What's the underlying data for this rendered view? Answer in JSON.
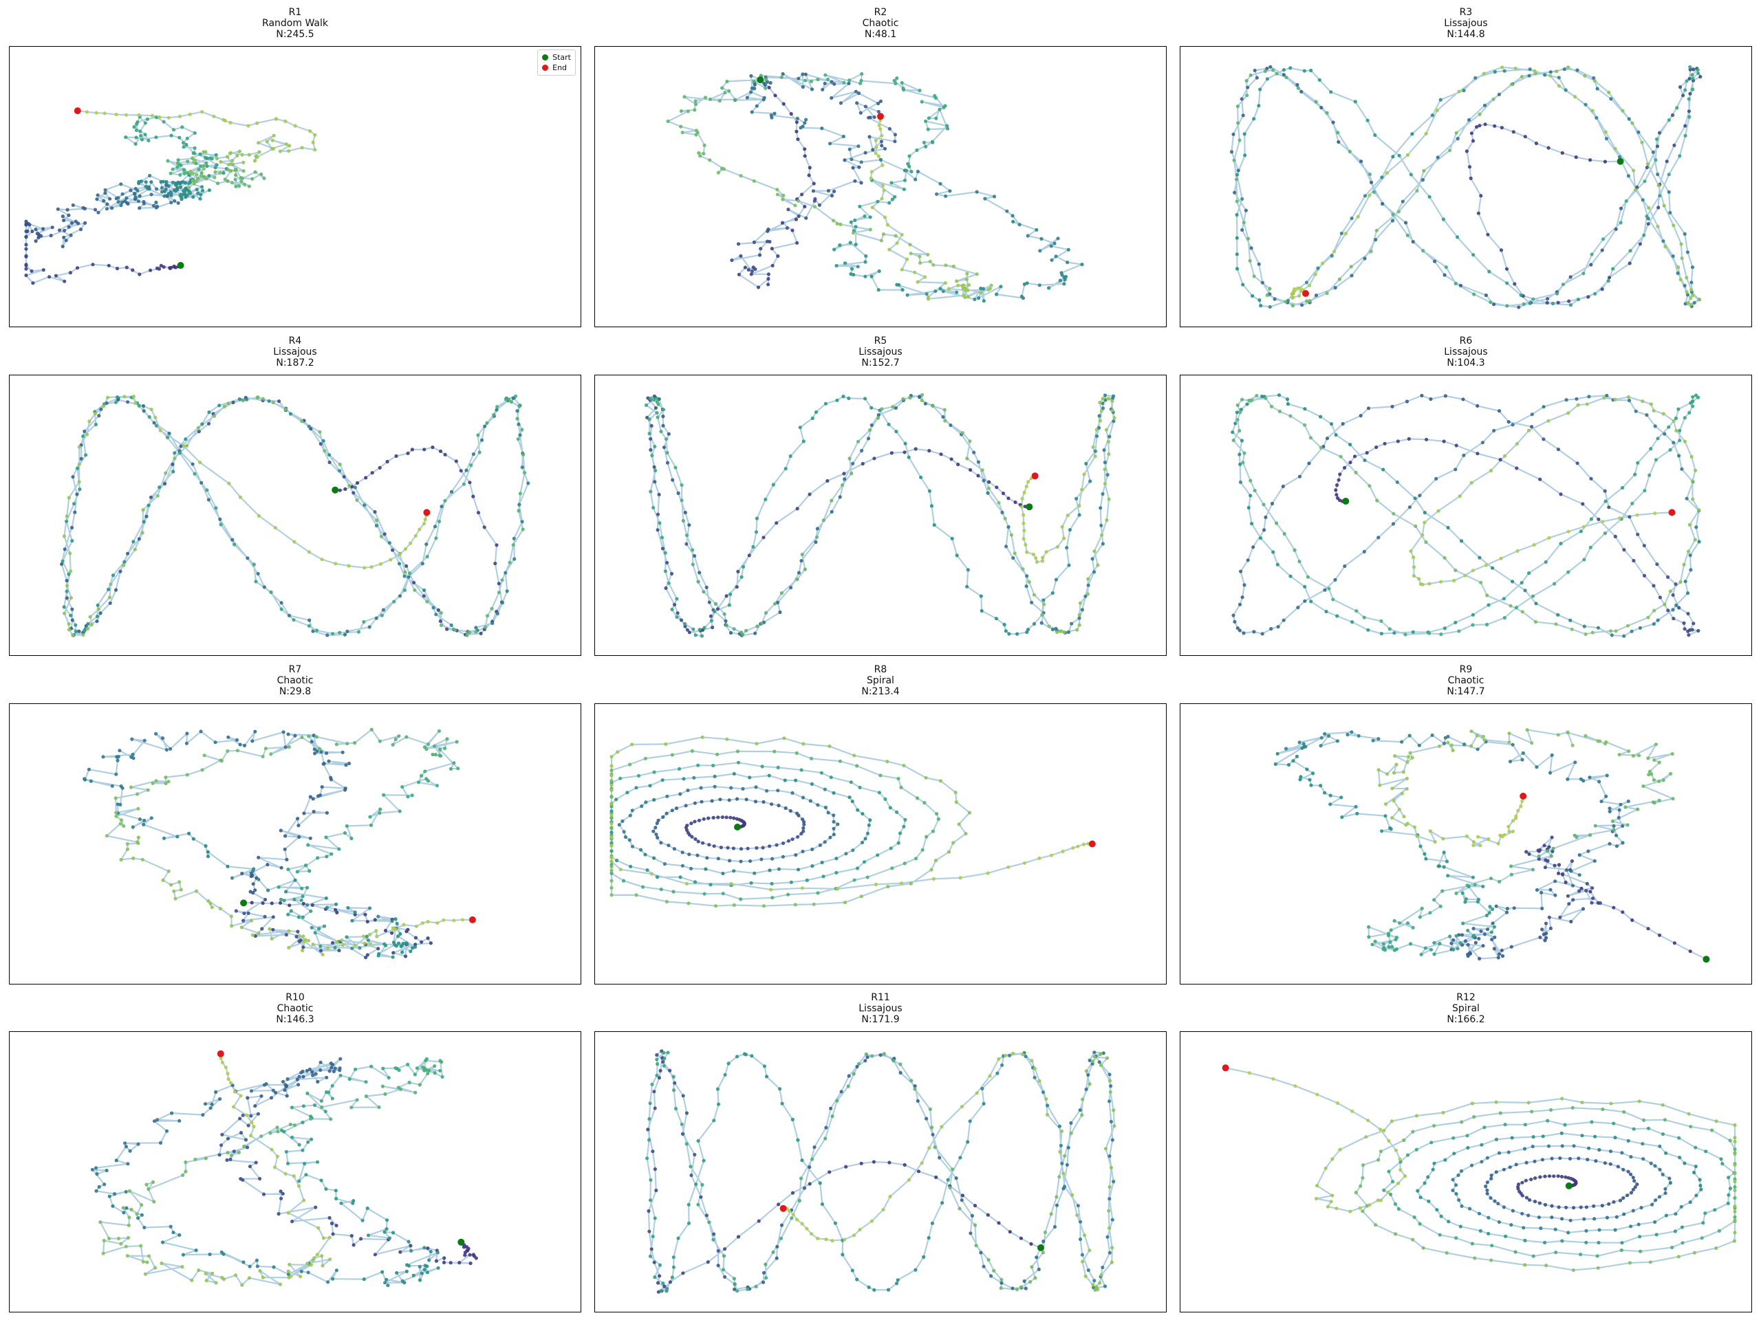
{
  "figure": {
    "background": "#ffffff"
  },
  "style": {
    "line_color": "#9ec3dc",
    "start_color": "#0a7a12",
    "end_color": "#e0181c",
    "point_colormap": [
      "#46337e",
      "#3b5a8c",
      "#33778e",
      "#279488",
      "#3fad7a",
      "#86c25b",
      "#b4cf4a"
    ]
  },
  "legend": {
    "entries": [
      {
        "label": "Start",
        "color": "#0a7a12"
      },
      {
        "label": "End",
        "color": "#e0181c"
      }
    ],
    "location": "upper right",
    "panel": "R1"
  },
  "chart_data": [
    {
      "type": "line",
      "id": "R1",
      "title": [
        "R1",
        "Random Walk",
        "N:245.5"
      ],
      "pattern": "random walk",
      "xlim": [
        0,
        1
      ],
      "ylim": [
        0,
        1
      ],
      "start": [
        0.3,
        0.22
      ],
      "end": [
        0.12,
        0.77
      ]
    },
    {
      "type": "line",
      "id": "R2",
      "title": [
        "R2",
        "Chaotic",
        "N:48.1"
      ],
      "pattern": "chaotic",
      "xlim": [
        0,
        1
      ],
      "ylim": [
        0,
        1
      ],
      "start": [
        0.29,
        0.88
      ],
      "end": [
        0.5,
        0.75
      ]
    },
    {
      "type": "line",
      "id": "R3",
      "title": [
        "R3",
        "Lissajous",
        "N:144.8"
      ],
      "pattern": "lissajous",
      "xlim": [
        0,
        1
      ],
      "ylim": [
        0,
        1
      ],
      "start": [
        0.77,
        0.59
      ],
      "end": [
        0.22,
        0.12
      ]
    },
    {
      "type": "line",
      "id": "R4",
      "title": [
        "R4",
        "Lissajous",
        "N:187.2"
      ],
      "pattern": "lissajous",
      "xlim": [
        0,
        1
      ],
      "ylim": [
        0,
        1
      ],
      "start": [
        0.57,
        0.59
      ],
      "end": [
        0.73,
        0.51
      ]
    },
    {
      "type": "line",
      "id": "R5",
      "title": [
        "R5",
        "Lissajous",
        "N:152.7"
      ],
      "pattern": "lissajous",
      "xlim": [
        0,
        1
      ],
      "ylim": [
        0,
        1
      ],
      "start": [
        0.76,
        0.53
      ],
      "end": [
        0.77,
        0.64
      ]
    },
    {
      "type": "line",
      "id": "R6",
      "title": [
        "R6",
        "Lissajous",
        "N:104.3"
      ],
      "pattern": "lissajous",
      "xlim": [
        0,
        1
      ],
      "ylim": [
        0,
        1
      ],
      "start": [
        0.29,
        0.55
      ],
      "end": [
        0.86,
        0.51
      ]
    },
    {
      "type": "line",
      "id": "R7",
      "title": [
        "R7",
        "Chaotic",
        "N:29.8"
      ],
      "pattern": "chaotic",
      "xlim": [
        0,
        1
      ],
      "ylim": [
        0,
        1
      ],
      "start": [
        0.41,
        0.29
      ],
      "end": [
        0.81,
        0.23
      ]
    },
    {
      "type": "line",
      "id": "R8",
      "title": [
        "R8",
        "Spiral",
        "N:213.4"
      ],
      "pattern": "spiral",
      "xlim": [
        0,
        1
      ],
      "ylim": [
        0,
        1
      ],
      "start": [
        0.25,
        0.56
      ],
      "end": [
        0.87,
        0.5
      ]
    },
    {
      "type": "line",
      "id": "R9",
      "title": [
        "R9",
        "Chaotic",
        "N:147.7"
      ],
      "pattern": "chaotic",
      "xlim": [
        0,
        1
      ],
      "ylim": [
        0,
        1
      ],
      "start": [
        0.92,
        0.09
      ],
      "end": [
        0.6,
        0.67
      ]
    },
    {
      "type": "line",
      "id": "R10",
      "title": [
        "R10",
        "Chaotic",
        "N:146.3"
      ],
      "pattern": "chaotic",
      "xlim": [
        0,
        1
      ],
      "ylim": [
        0,
        1
      ],
      "start": [
        0.79,
        0.25
      ],
      "end": [
        0.37,
        0.92
      ]
    },
    {
      "type": "line",
      "id": "R11",
      "title": [
        "R11",
        "Lissajous",
        "N:171.9"
      ],
      "pattern": "lissajous",
      "xlim": [
        0,
        1
      ],
      "ylim": [
        0,
        1
      ],
      "start": [
        0.78,
        0.23
      ],
      "end": [
        0.33,
        0.37
      ]
    },
    {
      "type": "line",
      "id": "R12",
      "title": [
        "R12",
        "Spiral",
        "N:166.2"
      ],
      "pattern": "spiral",
      "xlim": [
        0,
        1
      ],
      "ylim": [
        0,
        1
      ],
      "start": [
        0.68,
        0.45
      ],
      "end": [
        0.08,
        0.87
      ]
    }
  ]
}
